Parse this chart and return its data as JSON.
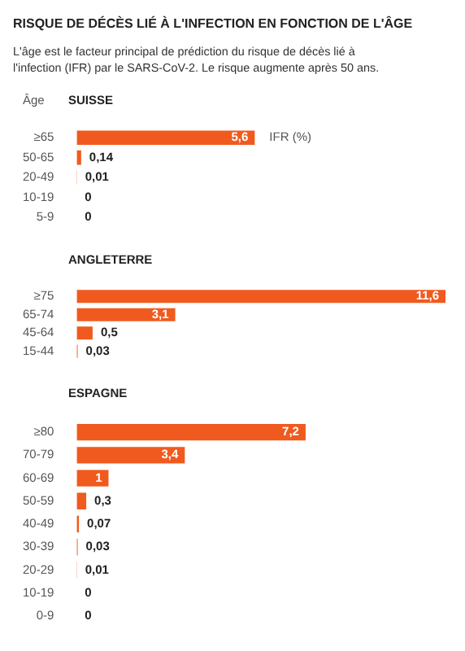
{
  "chart_data": [
    {
      "type": "bar",
      "orientation": "horizontal",
      "title": "SUISSE",
      "ylabel": "Âge",
      "annotations": [
        "RISQUE DE DÉCÈS LIÉ À L'INFECTION EN FONCTION DE L'ÂGE",
        "L'âge est le facteur principal de prédiction du risque de décès lié à l'infection (IFR) par le SARS-CoV-2. Le risque augmente après 50 ans.",
        "IFR (%)"
      ],
      "categories": [
        "≥65",
        "50-65",
        "20-49",
        "10-19",
        "5-9"
      ],
      "values": [
        5.6,
        0.14,
        0.01,
        0,
        0
      ],
      "value_labels": [
        "5,6",
        "0,14",
        "0,01",
        "0",
        "0"
      ],
      "color": "#f05a1e",
      "tick_labels": "y"
    },
    {
      "type": "bar",
      "orientation": "horizontal",
      "title": "ANGLETERRE",
      "categories": [
        "≥75",
        "65-74",
        "45-64",
        "15-44"
      ],
      "values": [
        11.6,
        3.1,
        0.5,
        0.03
      ],
      "value_labels": [
        "11,6",
        "3,1",
        "0,5",
        "0,03"
      ],
      "color": "#f05a1e",
      "tick_labels": "y"
    },
    {
      "type": "bar",
      "orientation": "horizontal",
      "title": "ESPAGNE",
      "categories": [
        "≥80",
        "70-79",
        "60-69",
        "50-59",
        "40-49",
        "30-39",
        "20-29",
        "10-19",
        "0-9"
      ],
      "values": [
        7.2,
        3.4,
        1,
        0.3,
        0.07,
        0.03,
        0.01,
        0,
        0
      ],
      "value_labels": [
        "7,2",
        "3,4",
        "1",
        "0,3",
        "0,07",
        "0,03",
        "0,01",
        "0",
        "0"
      ],
      "color": "#f05a1e",
      "tick_labels": "y"
    }
  ]
}
